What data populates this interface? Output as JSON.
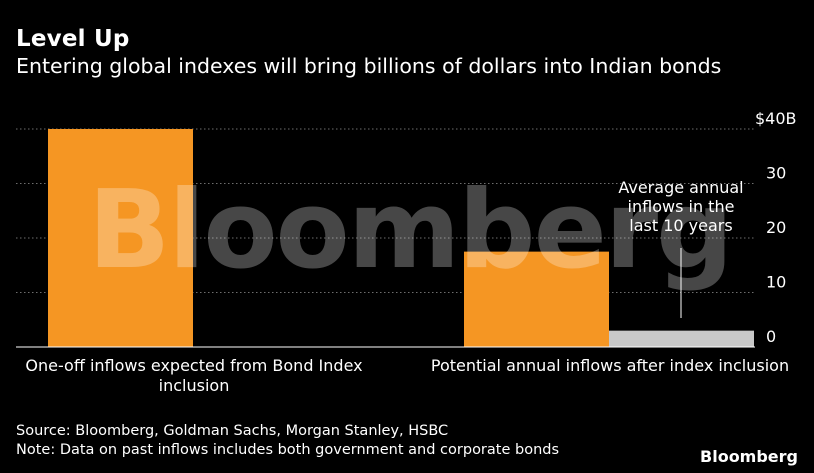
{
  "header": {
    "title": "Level Up",
    "subtitle": "Entering global indexes will bring billions of dollars into Indian bonds"
  },
  "chart_data": {
    "type": "bar",
    "categories": [
      "One-off inflows expected from Bond Index inclusion",
      "Potential annual inflows after index inclusion"
    ],
    "series": [
      {
        "values": [
          40,
          17.5
        ],
        "color": "#f59623"
      },
      {
        "values": [
          null,
          3
        ],
        "color": "#c8c8c8"
      }
    ],
    "ylim": [
      0,
      40
    ],
    "yticks": [
      0,
      10,
      20,
      30,
      40
    ],
    "ytick_labels": [
      "0",
      "10",
      "20",
      "30",
      "$40B"
    ],
    "grid": true,
    "annotation": {
      "text_lines": [
        "Average annual",
        "inflows in the",
        "last 10 years"
      ],
      "points_to_value": 3
    }
  },
  "footer": {
    "source": "Source: Bloomberg, Goldman Sachs, Morgan Stanley, HSBC",
    "note": "Note: Data on past inflows includes both government and corporate bonds",
    "logo": "Bloomberg"
  },
  "watermark": "Bloomberg"
}
